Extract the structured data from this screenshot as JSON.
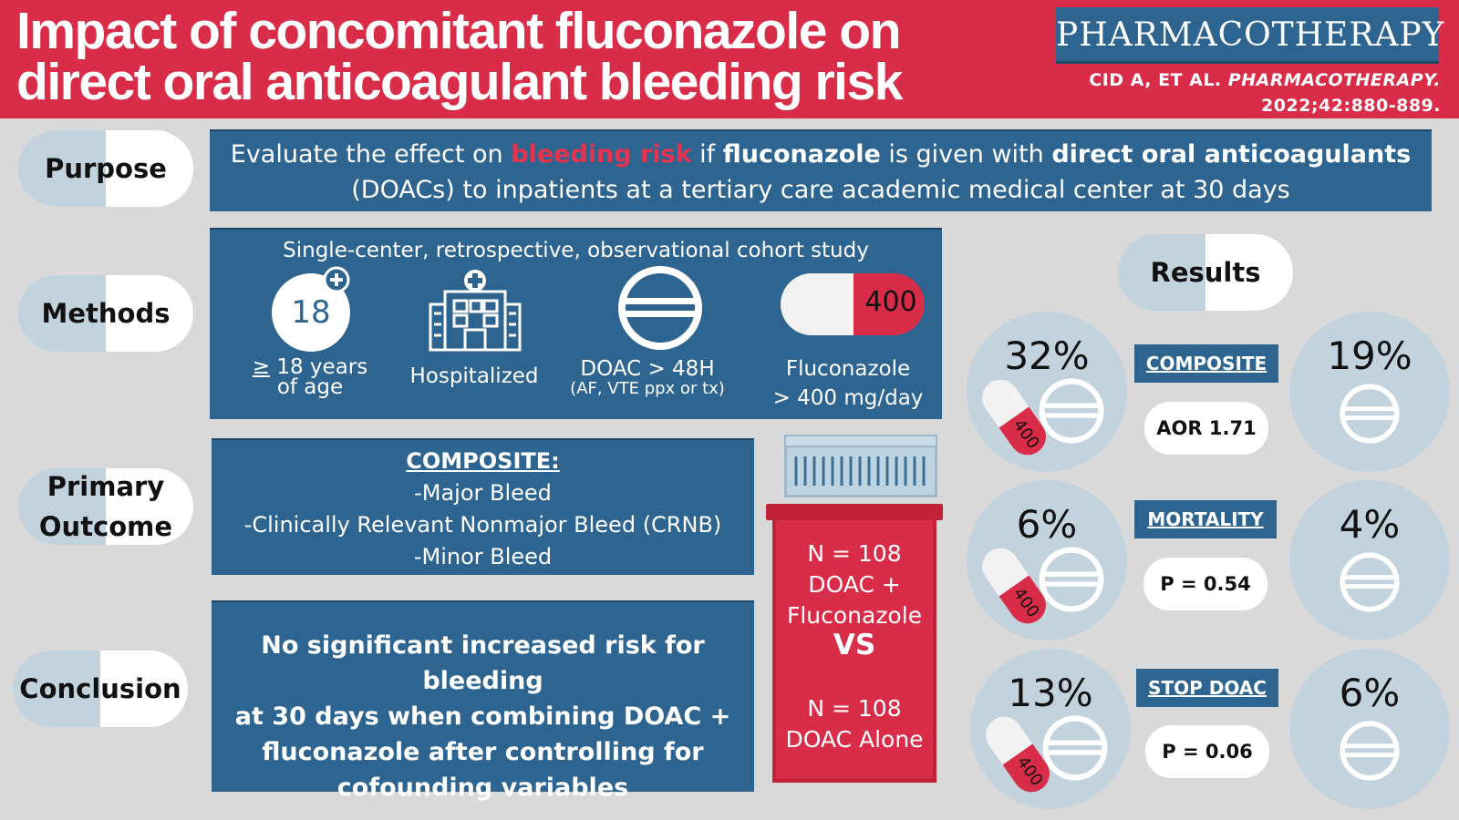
{
  "header": {
    "title_line1": "Impact of concomitant fluconazole on",
    "title_line2": "direct oral anticoagulant bleeding risk",
    "brand": "PHARMACOTHERAPY",
    "cite_authors": "CID A, ET AL.",
    "cite_journal": "PHARMACOTHERAPY.",
    "cite_ref": "2022;42:880-889."
  },
  "colors": {
    "red": "#d92c48",
    "blue": "#2e6590",
    "pale": "#c3d3de"
  },
  "sections": {
    "purpose": "Purpose",
    "methods": "Methods",
    "outcome_1": "Primary",
    "outcome_2": "Outcome",
    "conclusion": "Conclusion",
    "results": "Results"
  },
  "purpose": {
    "p1": "Evaluate the effect on ",
    "p2": "bleeding risk",
    "p3": " if ",
    "p4": "fluconazole",
    "p5": " is given with ",
    "p6": "direct oral anticoagulants",
    "p7": "(DOACs) to inpatients at a tertiary care academic medical center at 30 days"
  },
  "methods": {
    "design": "Single-center, retrospective, observational cohort study",
    "age_icon_text": "18",
    "age_sym": "≥",
    "age_l1": " 18 years",
    "age_l2": "of age",
    "hosp": "Hospitalized",
    "doac_l1": "DOAC > 48H",
    "doac_l2": "(AF, VTE ppx or tx)",
    "pill_text": "400",
    "fluc_l1": "Fluconazole",
    "fluc_l2": "> 400 mg/day"
  },
  "outcome": {
    "heading": "COMPOSITE: ",
    "items": [
      "-Major Bleed",
      "-Clinically Relevant Nonmajor Bleed (CRNB)",
      "-Minor Bleed"
    ]
  },
  "conclusion": {
    "l1": "No significant increased risk for bleeding",
    "l2": "at 30 days when combining DOAC +",
    "l3": "fluconazole after controlling for",
    "l4": "cofounding variables"
  },
  "bottle": {
    "g1_n": "N = 108",
    "g1_a": "DOAC  +",
    "g1_b": "Fluconazole",
    "vs": "VS",
    "g2_n": "N = 108",
    "g2_a": "DOAC Alone"
  },
  "results": [
    {
      "label": "COMPOSITE",
      "left_pct": "32%",
      "right_pct": "19%",
      "stat": "AOR 1.71",
      "pill": "400"
    },
    {
      "label": "MORTALITY",
      "left_pct": "6%",
      "right_pct": "4%",
      "stat": "P = 0.54",
      "pill": "400"
    },
    {
      "label": "STOP DOAC",
      "left_pct": "13%",
      "right_pct": "6%",
      "stat": "P = 0.06",
      "pill": "400"
    }
  ]
}
